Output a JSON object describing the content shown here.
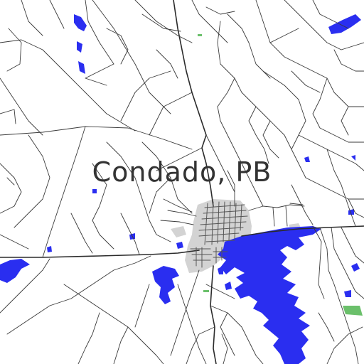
{
  "map": {
    "place_label": "Condado, PB",
    "colors": {
      "background": "#ffffff",
      "water": "#2a2ef0",
      "urban": "#d3d3d3",
      "road": "#2b2b2b",
      "green": "#6bc06b"
    }
  }
}
